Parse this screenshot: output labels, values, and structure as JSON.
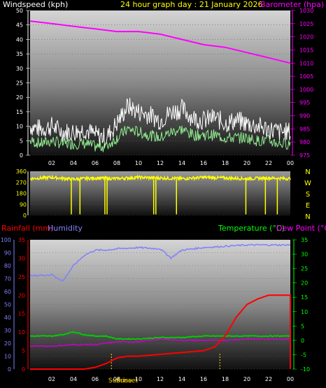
{
  "header": {
    "left_label": "Windspeed (kph)",
    "title": "24 hour graph day : 21 January 2026",
    "right_label": "Barometer (hpa)"
  },
  "panel3": {
    "label_rain": "Rainfall (mm)",
    "label_humidity": "Humidity",
    "label_temp": "Temperature (°C)",
    "label_dew": "Dew Point (°C)",
    "sunrise_label": "Sunrise",
    "sunset_label": "Sunset"
  },
  "colors": {
    "wind_gust": "#ffffff",
    "wind_avg": "#90ee90",
    "barometer": "#ff00ff",
    "direction": "#ffff00",
    "rain": "#ff0000",
    "humidity": "#8080ff",
    "temperature": "#00cc00",
    "dew_point": "#cc00cc",
    "sun_markers": "#ffd700"
  },
  "chart_data": [
    {
      "type": "line",
      "name": "wind-barometer",
      "x_ticks": [
        "02",
        "04",
        "06",
        "08",
        "10",
        "12",
        "14",
        "16",
        "18",
        "20",
        "22",
        "00"
      ],
      "ylabel_left": "Windspeed (kph)",
      "ylim_left": [
        0,
        50
      ],
      "yticks_left": [
        0,
        5,
        10,
        15,
        20,
        25,
        30,
        35,
        40,
        45,
        50
      ],
      "ylabel_right": "Barometer (hpa)",
      "ylim_right": [
        975,
        1030
      ],
      "yticks_right": [
        975,
        980,
        985,
        990,
        995,
        1000,
        1005,
        1010,
        1015,
        1020,
        1025,
        1030
      ],
      "series": [
        {
          "axis": "left",
          "role": "gust",
          "x": [
            0,
            1,
            2,
            3,
            4,
            5,
            6,
            7,
            8,
            9,
            10,
            11,
            12,
            13,
            14,
            15,
            16,
            17,
            18,
            19,
            20,
            21,
            22,
            23,
            24
          ],
          "values": [
            10,
            9,
            10,
            8,
            8,
            9,
            7,
            6,
            11,
            17,
            15,
            14,
            12,
            15,
            16,
            13,
            12,
            13,
            11,
            12,
            11,
            10,
            9,
            8,
            8
          ]
        },
        {
          "axis": "left",
          "role": "average",
          "x": [
            0,
            1,
            2,
            3,
            4,
            5,
            6,
            7,
            8,
            9,
            10,
            11,
            12,
            13,
            14,
            15,
            16,
            17,
            18,
            19,
            20,
            21,
            22,
            23,
            24
          ],
          "values": [
            5,
            4,
            5,
            4,
            4,
            4,
            3,
            3,
            6,
            9,
            8,
            7,
            6,
            8,
            9,
            7,
            7,
            7,
            6,
            6,
            6,
            5,
            5,
            4,
            4
          ]
        },
        {
          "axis": "right",
          "role": "barometer",
          "x": [
            0,
            2,
            4,
            6,
            8,
            10,
            12,
            14,
            16,
            18,
            20,
            22,
            24
          ],
          "values": [
            1026,
            1025,
            1024,
            1023,
            1022,
            1022,
            1021,
            1019,
            1017,
            1016,
            1014,
            1012,
            1010
          ]
        }
      ]
    },
    {
      "type": "scatter",
      "name": "wind-direction",
      "x_ticks": [
        "02",
        "04",
        "06",
        "08",
        "10",
        "12",
        "14",
        "16",
        "18",
        "20",
        "22",
        "00"
      ],
      "ylim": [
        0,
        360
      ],
      "yticks": [
        0,
        90,
        180,
        270,
        360
      ],
      "right_labels": [
        "N",
        "W",
        "S",
        "E",
        "N"
      ],
      "series": [
        {
          "role": "direction",
          "x": [
            0,
            2,
            4,
            6,
            8,
            10,
            12,
            14,
            16,
            18,
            20,
            22,
            24
          ],
          "values": [
            300,
            310,
            295,
            305,
            300,
            310,
            305,
            300,
            310,
            305,
            300,
            305,
            300
          ]
        }
      ]
    },
    {
      "type": "line",
      "name": "rain-humidity-temperature",
      "x_ticks": [
        "02",
        "04",
        "06",
        "08",
        "10",
        "12",
        "14",
        "16",
        "18",
        "20",
        "22",
        "00"
      ],
      "ylim_humidity": [
        0,
        100
      ],
      "yticks_humidity": [
        0,
        10,
        20,
        30,
        40,
        50,
        60,
        70,
        80,
        90,
        100
      ],
      "ylim_rain": [
        0,
        35
      ],
      "yticks_rain": [
        0,
        5,
        10,
        15,
        20,
        25,
        30,
        35
      ],
      "ylim_temp": [
        -10,
        35
      ],
      "yticks_temp": [
        -10,
        -5,
        0,
        5,
        10,
        15,
        20,
        25,
        30,
        35
      ],
      "series": [
        {
          "axis": "humidity",
          "role": "humidity",
          "x": [
            0,
            2,
            3,
            4,
            5,
            6,
            7,
            8,
            10,
            12,
            13,
            14,
            16,
            18,
            20,
            22,
            24
          ],
          "values": [
            72,
            73,
            68,
            80,
            88,
            92,
            92,
            93,
            94,
            93,
            86,
            92,
            94,
            95,
            96,
            96,
            96
          ]
        },
        {
          "axis": "rain",
          "role": "rainfall",
          "x": [
            0,
            1,
            4,
            5,
            6,
            7,
            8,
            9,
            10,
            14,
            16,
            17,
            18,
            19,
            20,
            21,
            22,
            23,
            24
          ],
          "values": [
            0,
            0,
            0,
            0,
            0.5,
            1.5,
            3,
            3.5,
            3.5,
            4.5,
            5,
            6,
            9,
            14,
            17.5,
            19,
            20,
            20,
            20
          ]
        },
        {
          "axis": "temp",
          "role": "temperature",
          "x": [
            0,
            2,
            3,
            4,
            5,
            6,
            7,
            8,
            10,
            12,
            14,
            16,
            18,
            20,
            22,
            24
          ],
          "values": [
            1.5,
            1.5,
            2,
            3,
            2,
            1.5,
            1.5,
            0.5,
            0.5,
            1,
            1,
            1.5,
            1.5,
            1.5,
            1.5,
            1.5
          ]
        },
        {
          "axis": "temp",
          "role": "dew-point",
          "x": [
            0,
            2,
            4,
            6,
            8,
            10,
            12,
            14,
            16,
            18,
            20,
            22,
            24
          ],
          "values": [
            -2,
            -2,
            -1.5,
            -1.5,
            -0.5,
            -0.5,
            0.5,
            0,
            0,
            0,
            0.5,
            0.5,
            0.5
          ]
        }
      ],
      "sunrise_hour": 7.5,
      "sunset_hour": 17.5
    }
  ]
}
